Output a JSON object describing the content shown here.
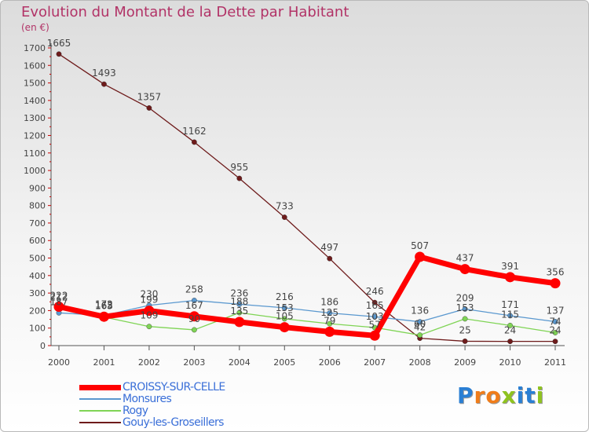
{
  "chart_data": {
    "type": "line",
    "title": "Evolution du Montant de la Dette par Habitant",
    "unit_label": "(en €)",
    "categories": [
      "2000",
      "2001",
      "2002",
      "2003",
      "2004",
      "2005",
      "2006",
      "2007",
      "2008",
      "2009",
      "2010",
      "2011"
    ],
    "ylim": [
      0,
      1700
    ],
    "y_ticks": [
      0,
      100,
      200,
      300,
      400,
      500,
      600,
      700,
      800,
      900,
      1000,
      1100,
      1200,
      1300,
      1400,
      1500,
      1600,
      1700
    ],
    "grid": false,
    "legend_position": "bottom-left",
    "series": [
      {
        "name": "Gouy-les-Groseillers",
        "color": "#6e1b1b",
        "values": [
          1665,
          1493,
          1357,
          1162,
          955,
          733,
          497,
          246,
          42,
          25,
          24,
          24
        ]
      },
      {
        "name": "Monsures",
        "color": "#5a98cf",
        "values": [
          187,
          172,
          230,
          258,
          236,
          216,
          186,
          165,
          136,
          209,
          171,
          137
        ]
      },
      {
        "name": "Rogy",
        "color": "#7fd455",
        "values": [
          212,
          163,
          109,
          90,
          188,
          153,
          125,
          103,
          60,
          153,
          115,
          74
        ]
      },
      {
        "name": "CROISSY-SUR-CELLE",
        "color": "#ff0000",
        "values": [
          222,
          165,
          199,
          167,
          135,
          105,
          79,
          57,
          507,
          437,
          391,
          356
        ]
      }
    ],
    "data_labels": {
      "Gouy-les-Groseillers": [
        "1665",
        "1493",
        "1357",
        "1162",
        "955",
        "733",
        "497",
        "246",
        "42",
        "25",
        "24",
        "24"
      ],
      "Monsures": [
        "187",
        "172",
        "230",
        "258",
        "236",
        "216",
        "186",
        "165",
        "136",
        "209",
        "171",
        "137"
      ],
      "Rogy": [
        "212",
        "163",
        "109",
        "90",
        "188",
        "153",
        "125",
        "103",
        "60",
        "153",
        "115",
        "74"
      ],
      "CROISSY-SUR-CELLE": [
        "222",
        "165",
        "199",
        "167",
        "135",
        "105",
        "79",
        "57",
        "507",
        "437",
        "391",
        "356"
      ]
    }
  },
  "legend": [
    {
      "label": "CROISSY-SUR-CELLE",
      "color": "#ff0000",
      "weight": "thick"
    },
    {
      "label": "Monsures",
      "color": "#5a98cf",
      "weight": "thin"
    },
    {
      "label": "Rogy",
      "color": "#7fd455",
      "weight": "thin"
    },
    {
      "label": "Gouy-les-Groseillers",
      "color": "#6e1b1b",
      "weight": "thin"
    }
  ],
  "brand": {
    "letters": [
      {
        "ch": "P",
        "color": "#2a7fd4"
      },
      {
        "ch": "r",
        "color": "#f07d1a"
      },
      {
        "ch": "o",
        "color": "#f07d1a"
      },
      {
        "ch": "x",
        "color": "#8fc31f"
      },
      {
        "ch": "i",
        "color": "#2a7fd4"
      },
      {
        "ch": "t",
        "color": "#2a7fd4"
      },
      {
        "ch": "i",
        "color": "#8fc31f"
      }
    ]
  }
}
